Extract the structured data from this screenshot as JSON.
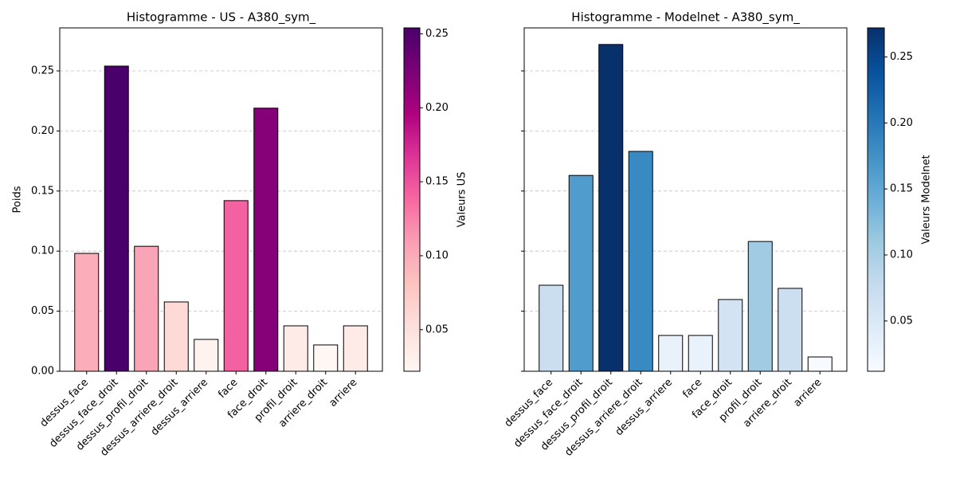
{
  "chart_data": [
    {
      "type": "bar",
      "title": "Histogramme - US - A380_sym_",
      "y_label": "Poids",
      "categories": [
        "dessus_face",
        "dessus_face_droit",
        "dessus_profil_droit",
        "dessus_arriere_droit",
        "dessus_arriere",
        "face",
        "face_droit",
        "profil_droit",
        "arriere_droit",
        "arriere"
      ],
      "values": [
        0.0981,
        0.254,
        0.104,
        0.0577,
        0.0265,
        0.142,
        0.219,
        0.0378,
        0.0219,
        0.0378
      ],
      "ylim": [
        0,
        0.2858
      ],
      "yticks": [
        {
          "value": 0,
          "label": "0.00"
        },
        0.05,
        {
          "value": 0.1,
          "label": "0.10"
        },
        0.15,
        {
          "value": 0.2,
          "label": "0.20"
        },
        0.25
      ],
      "grid": true,
      "colorbar": {
        "label": "Valeurs US",
        "lim": [
          0.0219,
          0.254
        ],
        "ticks": [
          0.05,
          {
            "value": 0.1,
            "label": "0.10"
          },
          0.15,
          {
            "value": 0.2,
            "label": "0.20"
          },
          0.25
        ],
        "colormap": [
          "#fff7f3",
          "#fde0dd",
          "#fcc5c0",
          "#fa9fb5",
          "#f768a1",
          "#dd3497",
          "#ae017e",
          "#7a0177",
          "#49006a"
        ]
      }
    },
    {
      "type": "bar",
      "title": "Histogramme - Modelnet - A380_sym_",
      "sharey": true,
      "categories": [
        "dessus_face",
        "dessus_face_droit",
        "dessus_profil_droit",
        "dessus_arriere_droit",
        "dessus_arriere",
        "face",
        "face_droit",
        "profil_droit",
        "arriere_droit",
        "arriere"
      ],
      "values": [
        0.0716,
        0.163,
        0.272,
        0.183,
        0.0298,
        0.0298,
        0.0597,
        0.108,
        0.069,
        0.0119
      ],
      "grid": true,
      "colorbar": {
        "label": "Valeurs Modelnet",
        "lim": [
          0.0119,
          0.272
        ],
        "ticks": [
          0.05,
          {
            "value": 0.1,
            "label": "0.10"
          },
          0.15,
          {
            "value": 0.2,
            "label": "0.20"
          },
          0.25
        ],
        "colormap": [
          "#f7fbff",
          "#deebf7",
          "#c6dbef",
          "#9ecae1",
          "#6baed6",
          "#4292c6",
          "#2171b5",
          "#08519c",
          "#08306b"
        ]
      }
    }
  ]
}
